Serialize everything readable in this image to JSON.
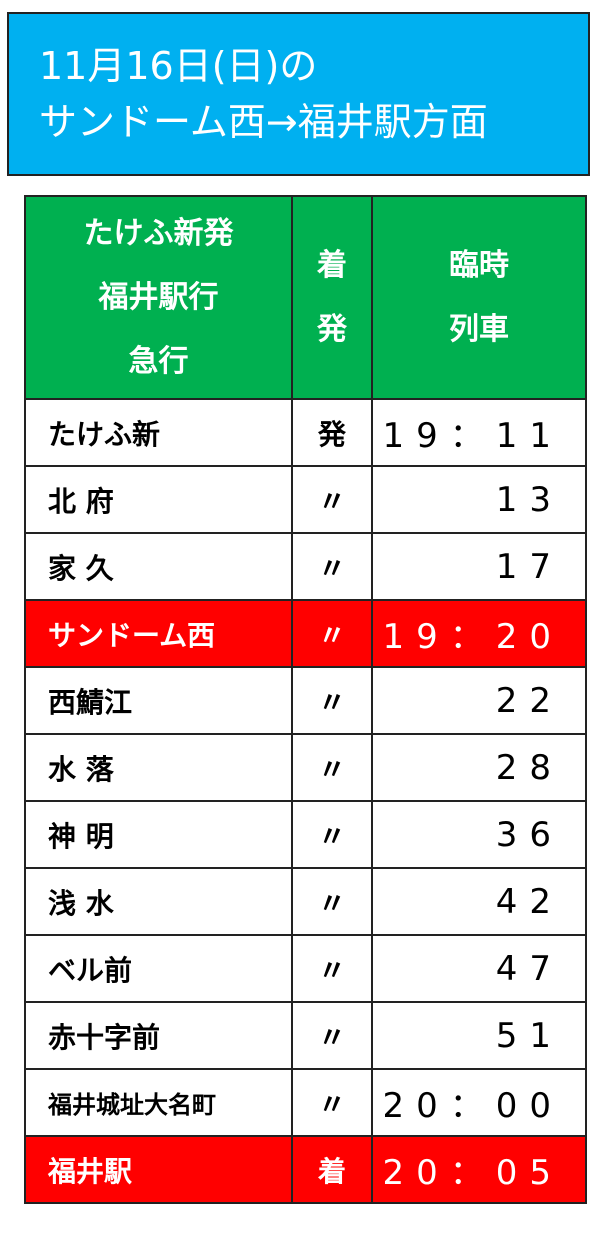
{
  "title": {
    "line1": "11月16日(日)の",
    "line2": "サンドーム西→福井駅方面"
  },
  "colors": {
    "title_bg": "#00b0f0",
    "header_bg": "#00b050",
    "highlight": "#ff0000"
  },
  "header": {
    "col1": [
      "たけふ新発",
      "福井駅行",
      "急行"
    ],
    "col2": [
      "着",
      "発"
    ],
    "col3": [
      "臨時",
      "列車"
    ]
  },
  "rows": [
    {
      "station": "たけふ新",
      "mark": "発",
      "time": "19：11",
      "highlight": false
    },
    {
      "station": "北 府",
      "mark": "〃",
      "time": "13",
      "highlight": false
    },
    {
      "station": "家 久",
      "mark": "〃",
      "time": "17",
      "highlight": false
    },
    {
      "station": "サンドーム西",
      "mark": "〃",
      "time": "19：20",
      "highlight": true
    },
    {
      "station": "西鯖江",
      "mark": "〃",
      "time": "22",
      "highlight": false
    },
    {
      "station": "水 落",
      "mark": "〃",
      "time": "28",
      "highlight": false
    },
    {
      "station": "神 明",
      "mark": "〃",
      "time": "36",
      "highlight": false
    },
    {
      "station": "浅 水",
      "mark": "〃",
      "time": "42",
      "highlight": false
    },
    {
      "station": "ベル前",
      "mark": "〃",
      "time": "47",
      "highlight": false
    },
    {
      "station": "赤十字前",
      "mark": "〃",
      "time": "51",
      "highlight": false
    },
    {
      "station": "福井城址大名町",
      "mark": "〃",
      "time": "20：00",
      "highlight": false
    },
    {
      "station": "福井駅",
      "mark": "着",
      "time": "20：05",
      "highlight": true
    }
  ]
}
